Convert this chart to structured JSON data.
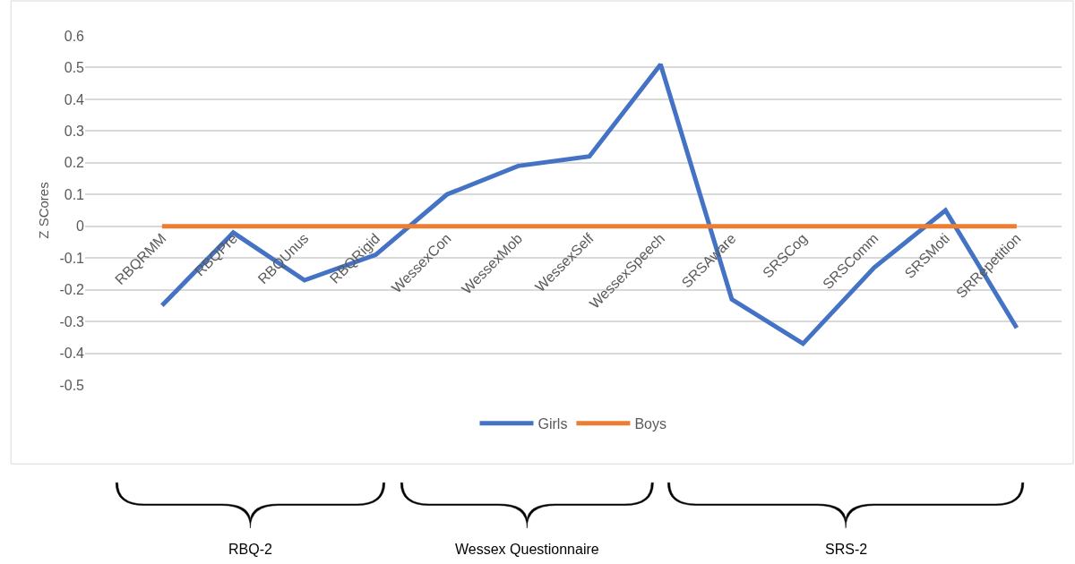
{
  "chart_data": {
    "type": "line",
    "ylabel": "Z SCores",
    "categories": [
      "RBQRMM",
      "RBQPre",
      "RBQUnus",
      "RBQRigid",
      "WessexCon",
      "WessexMob",
      "WessexSelf",
      "WessexSpeech",
      "SRSAware",
      "SRSCog",
      "SRSComm",
      "SRSMoti",
      "SRRepetition"
    ],
    "series": [
      {
        "name": "Girls",
        "color": "#4472c4",
        "values": [
          -0.25,
          -0.02,
          -0.17,
          -0.09,
          0.1,
          0.19,
          0.22,
          0.51,
          -0.23,
          -0.37,
          -0.13,
          0.05,
          -0.32
        ]
      },
      {
        "name": "Boys",
        "color": "#ed7d31",
        "values": [
          0,
          0,
          0,
          0,
          0,
          0,
          0,
          0,
          0,
          0,
          0,
          0,
          0
        ]
      }
    ],
    "ylim": [
      -0.5,
      0.6
    ],
    "yticks": [
      -0.5,
      -0.4,
      -0.3,
      -0.2,
      -0.1,
      0,
      0.1,
      0.2,
      0.3,
      0.4,
      0.5,
      0.6
    ],
    "grid": "y",
    "legend": "bottom",
    "marker": "none",
    "line_style": "solid",
    "annotations": [
      "RBQ-2",
      "Wessex Questionnaire",
      "SRS-2"
    ]
  }
}
